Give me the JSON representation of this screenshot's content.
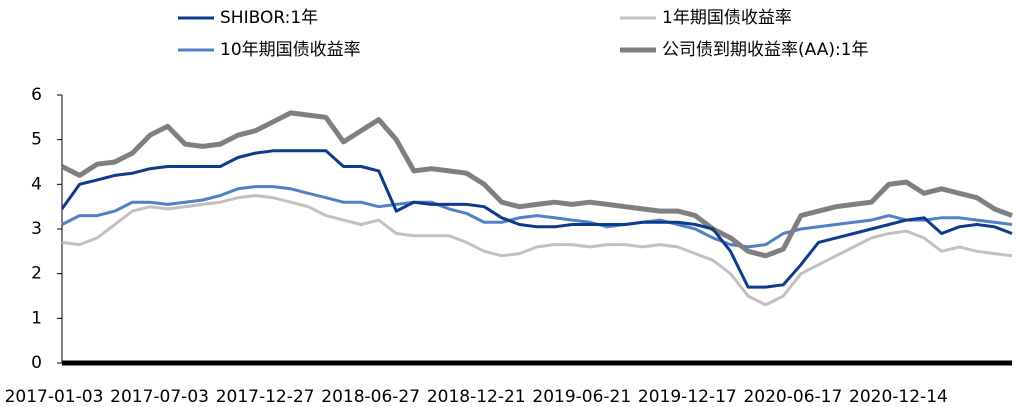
{
  "chart_data": {
    "type": "line",
    "categories": [
      "2017-01-03",
      null,
      null,
      null,
      null,
      null,
      "2017-07-03",
      null,
      null,
      null,
      null,
      null,
      "2017-12-27",
      null,
      null,
      null,
      null,
      null,
      "2018-06-27",
      null,
      null,
      null,
      null,
      null,
      "2018-12-21",
      null,
      null,
      null,
      null,
      null,
      "2019-06-21",
      null,
      null,
      null,
      null,
      null,
      "2019-12-17",
      null,
      null,
      null,
      null,
      null,
      "2020-06-17",
      null,
      null,
      null,
      null,
      null,
      "2020-12-14",
      null,
      null,
      null,
      null,
      null,
      null
    ],
    "series": [
      {
        "name": "SHIBOR:1年",
        "color": "#0d3b8c",
        "width": 3,
        "values": [
          3.45,
          4.0,
          4.1,
          4.2,
          4.25,
          4.35,
          4.4,
          4.4,
          4.4,
          4.4,
          4.6,
          4.7,
          4.75,
          4.75,
          4.75,
          4.75,
          4.4,
          4.4,
          4.3,
          3.4,
          3.6,
          3.55,
          3.55,
          3.55,
          3.5,
          3.25,
          3.1,
          3.05,
          3.05,
          3.1,
          3.1,
          3.1,
          3.1,
          3.15,
          3.15,
          3.15,
          3.1,
          3.0,
          2.5,
          1.7,
          1.7,
          1.75,
          2.2,
          2.7,
          2.8,
          2.9,
          3.0,
          3.1,
          3.2,
          3.25,
          2.9,
          3.05,
          3.1,
          3.05,
          2.9
        ]
      },
      {
        "name": "1年期国债收益率",
        "color": "#c0c0c0",
        "width": 3,
        "values": [
          2.7,
          2.65,
          2.8,
          3.1,
          3.4,
          3.5,
          3.45,
          3.5,
          3.55,
          3.6,
          3.7,
          3.75,
          3.7,
          3.6,
          3.5,
          3.3,
          3.2,
          3.1,
          3.2,
          2.9,
          2.85,
          2.85,
          2.85,
          2.7,
          2.5,
          2.4,
          2.45,
          2.6,
          2.65,
          2.65,
          2.6,
          2.65,
          2.65,
          2.6,
          2.65,
          2.6,
          2.45,
          2.3,
          2.0,
          1.5,
          1.3,
          1.5,
          2.0,
          2.2,
          2.4,
          2.6,
          2.8,
          2.9,
          2.95,
          2.8,
          2.5,
          2.6,
          2.5,
          2.45,
          2.4
        ]
      },
      {
        "name": "10年期国债收益率",
        "color": "#4f81c7",
        "width": 3,
        "values": [
          3.1,
          3.3,
          3.3,
          3.4,
          3.6,
          3.6,
          3.55,
          3.6,
          3.65,
          3.75,
          3.9,
          3.95,
          3.95,
          3.9,
          3.8,
          3.7,
          3.6,
          3.6,
          3.5,
          3.55,
          3.6,
          3.6,
          3.45,
          3.35,
          3.15,
          3.15,
          3.25,
          3.3,
          3.25,
          3.2,
          3.15,
          3.05,
          3.1,
          3.15,
          3.2,
          3.1,
          3.0,
          2.8,
          2.65,
          2.6,
          2.65,
          2.9,
          3.0,
          3.05,
          3.1,
          3.15,
          3.2,
          3.3,
          3.2,
          3.2,
          3.25,
          3.25,
          3.2,
          3.15,
          3.1
        ]
      },
      {
        "name": "公司债到期收益率(AA):1年",
        "color": "#7f7f7f",
        "width": 5,
        "values": [
          4.4,
          4.2,
          4.45,
          4.5,
          4.7,
          5.1,
          5.3,
          4.9,
          4.85,
          4.9,
          5.1,
          5.2,
          5.4,
          5.6,
          5.55,
          5.5,
          4.95,
          5.2,
          5.45,
          5.0,
          4.3,
          4.35,
          4.3,
          4.25,
          4.0,
          3.6,
          3.5,
          3.55,
          3.6,
          3.55,
          3.6,
          3.55,
          3.5,
          3.45,
          3.4,
          3.4,
          3.3,
          3.0,
          2.8,
          2.5,
          2.4,
          2.55,
          3.3,
          3.4,
          3.5,
          3.55,
          3.6,
          4.0,
          4.05,
          3.8,
          3.9,
          3.8,
          3.7,
          3.45,
          3.3
        ]
      }
    ],
    "ylim": [
      0,
      6
    ],
    "yticks": [
      0,
      1,
      2,
      3,
      4,
      5,
      6
    ],
    "legend": "top"
  }
}
